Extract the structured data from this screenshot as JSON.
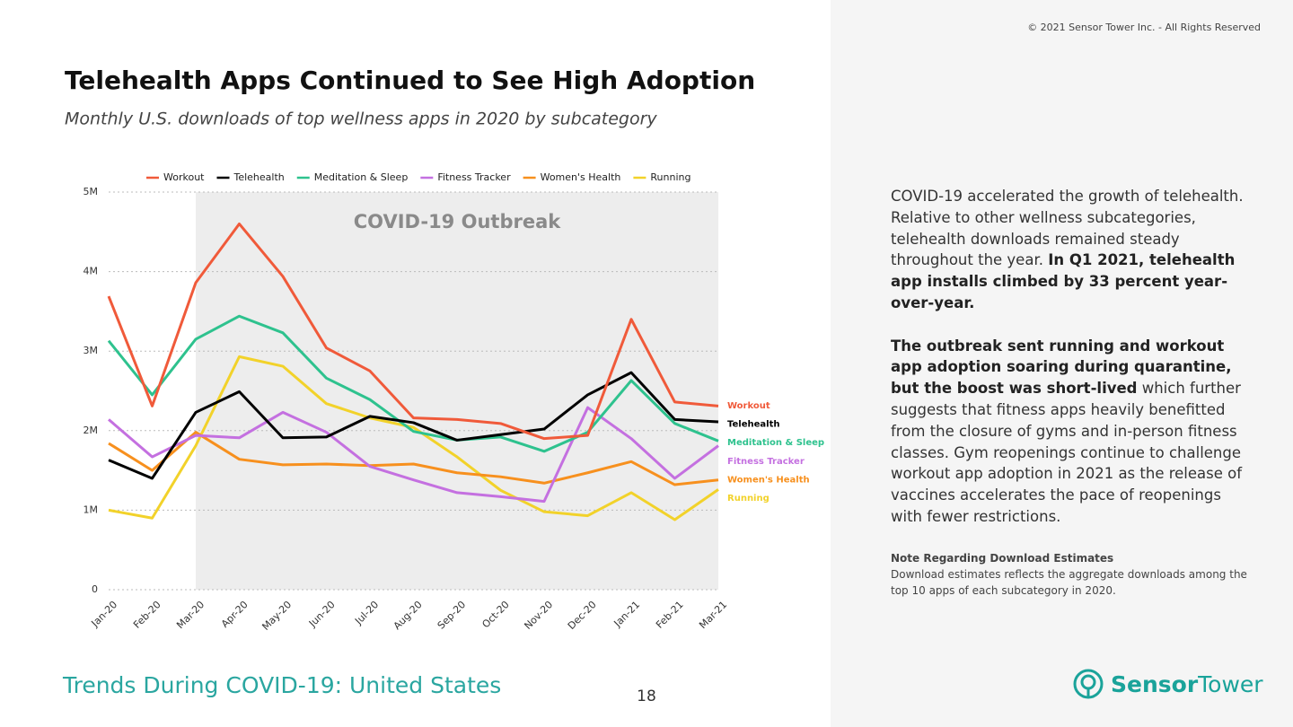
{
  "copyright": "© 2021 Sensor Tower Inc. - All Rights Reserved",
  "chart_data": {
    "type": "line",
    "title": "Telehealth Apps Continued to See High Adoption",
    "subtitle": "Monthly U.S. downloads of top wellness apps in 2020 by subcategory",
    "annotation": {
      "text": "COVID-19 Outbreak",
      "from": "Mar-20",
      "to": "Mar-21"
    },
    "categories": [
      "Jan-20",
      "Feb-20",
      "Mar-20",
      "Apr-20",
      "May-20",
      "Jun-20",
      "Jul-20",
      "Aug-20",
      "Sep-20",
      "Oct-20",
      "Nov-20",
      "Dec-20",
      "Jan-21",
      "Feb-21",
      "Mar-21"
    ],
    "series": [
      {
        "name": "Workout",
        "color": "#f05a3a",
        "values": [
          3690000,
          2310000,
          3860000,
          4600000,
          3940000,
          3040000,
          2750000,
          2160000,
          2140000,
          2090000,
          1900000,
          1940000,
          3400000,
          2360000,
          2310000
        ]
      },
      {
        "name": "Telehealth",
        "color": "#000000",
        "values": [
          1630000,
          1400000,
          2230000,
          2490000,
          1910000,
          1920000,
          2180000,
          2100000,
          1880000,
          1950000,
          2020000,
          2450000,
          2730000,
          2140000,
          2110000
        ]
      },
      {
        "name": "Meditation & Sleep",
        "color": "#2ec28e",
        "values": [
          3130000,
          2450000,
          3150000,
          3440000,
          3230000,
          2660000,
          2390000,
          1990000,
          1880000,
          1920000,
          1740000,
          1980000,
          2630000,
          2090000,
          1870000
        ]
      },
      {
        "name": "Fitness Tracker",
        "color": "#c470e0",
        "values": [
          2140000,
          1670000,
          1940000,
          1910000,
          2230000,
          1980000,
          1550000,
          1380000,
          1220000,
          1170000,
          1110000,
          2290000,
          1900000,
          1400000,
          1810000
        ]
      },
      {
        "name": "Women's Health",
        "color": "#f7901e",
        "values": [
          1840000,
          1500000,
          1980000,
          1640000,
          1570000,
          1580000,
          1560000,
          1580000,
          1470000,
          1420000,
          1340000,
          1470000,
          1610000,
          1320000,
          1380000
        ]
      },
      {
        "name": "Running",
        "color": "#f2d22a",
        "values": [
          1000000,
          900000,
          1810000,
          2930000,
          2810000,
          2340000,
          2160000,
          2040000,
          1670000,
          1250000,
          980000,
          930000,
          1220000,
          880000,
          1260000
        ]
      }
    ],
    "ylim": [
      0,
      5000000
    ],
    "yticks": [
      0,
      {
        "value": 1000000,
        "label": "1M"
      },
      {
        "value": 2000000,
        "label": "2M"
      },
      {
        "value": 3000000,
        "label": "3M"
      },
      {
        "value": 4000000,
        "label": "4M"
      },
      {
        "value": 5000000,
        "label": "5M"
      }
    ],
    "grid": true
  },
  "sidebar": {
    "paragraphs": [
      [
        {
          "text": "COVID-19 accelerated the growth of telehealth. Relative to other wellness subcategories, telehealth downloads remained steady throughout the year. ",
          "bold": false
        },
        {
          "text": "In Q1 2021, telehealth app installs climbed by 33 percent year-over-year.",
          "bold": true
        }
      ],
      [
        {
          "text": "The outbreak sent running and workout app adoption soaring during quarantine, but the boost was short-lived",
          "bold": true
        },
        {
          "text": " which further suggests that fitness apps heavily benefitted from the closure of gyms and in-person fitness classes. Gym reopenings continue to challenge workout app adoption in 2021 as the release of  vaccines accelerates the pace of reopenings with fewer restrictions.",
          "bold": false
        }
      ]
    ],
    "note_title": "Note Regarding Download Estimates",
    "note_text": "Download estimates reflects the aggregate downloads among the top 10 apps of each subcategory in 2020."
  },
  "footer": {
    "section": "Trends During COVID-19: United States",
    "page": "18",
    "logo": [
      "Sensor",
      "Tower"
    ]
  }
}
